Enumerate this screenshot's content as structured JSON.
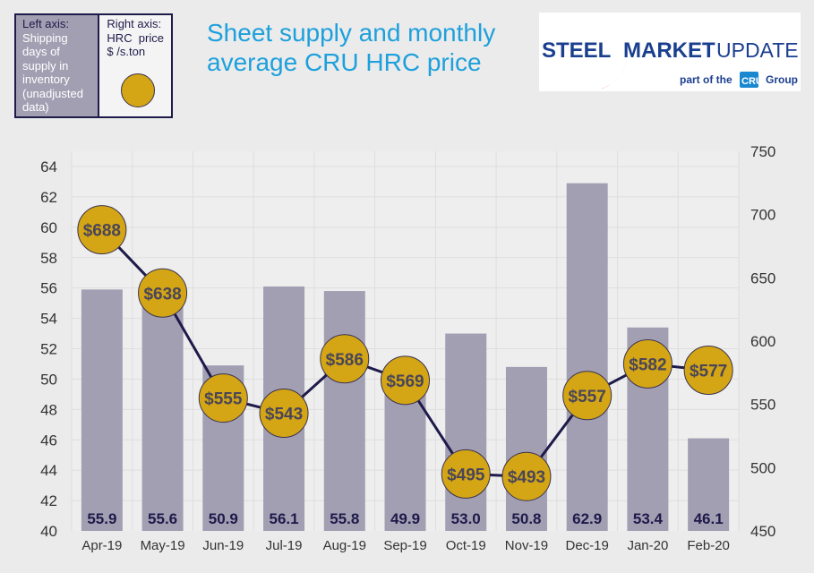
{
  "title_line1": "Sheet supply and monthly",
  "title_line2": "average CRU HRC price",
  "legend": {
    "left_heading": "Left axis:",
    "left_text": [
      "Shipping",
      "days of",
      "supply in",
      "inventory",
      "(unadjusted",
      "data)"
    ],
    "right_heading": "Right axis:",
    "right_text": [
      "HRC  price",
      "$ /s.ton"
    ]
  },
  "logo": {
    "text1": "STEEL",
    "text2": "MARKET",
    "text3": "UPDATE",
    "sub1": "part of the",
    "cru": "CRU",
    "sub2": "Group"
  },
  "chart_data": {
    "type": "bar+line",
    "categories": [
      "Apr-19",
      "May-19",
      "Jun-19",
      "Jul-19",
      "Aug-19",
      "Sep-19",
      "Oct-19",
      "Nov-19",
      "Dec-19",
      "Jan-20",
      "Feb-20"
    ],
    "series": [
      {
        "name": "Shipping days of supply in inventory",
        "axis": "left",
        "type": "bar",
        "values": [
          55.9,
          55.6,
          50.9,
          56.1,
          55.8,
          49.9,
          53.0,
          50.8,
          62.9,
          53.4,
          46.1
        ],
        "labels": [
          "55.9",
          "55.6",
          "50.9",
          "56.1",
          "55.8",
          "49.9",
          "53.0",
          "50.8",
          "62.9",
          "53.4",
          "46.1"
        ]
      },
      {
        "name": "HRC price $/s.ton",
        "axis": "right",
        "type": "line",
        "values": [
          688,
          638,
          555,
          543,
          586,
          569,
          495,
          493,
          557,
          582,
          577
        ],
        "labels": [
          "$688",
          "$638",
          "$555",
          "$543",
          "$586",
          "$569",
          "$495",
          "$493",
          "$557",
          "$582",
          "$577"
        ]
      }
    ],
    "left_axis": {
      "range": [
        40,
        64
      ],
      "ticks": [
        "40",
        "42",
        "44",
        "46",
        "48",
        "50",
        "52",
        "54",
        "56",
        "58",
        "60",
        "62",
        "64"
      ]
    },
    "right_axis": {
      "range": [
        450,
        750
      ],
      "ticks": [
        "450",
        "500",
        "550",
        "600",
        "650",
        "700",
        "750"
      ]
    },
    "colors": {
      "bar": "#a39fb3",
      "line": "#1e1a4a",
      "marker": "#d4a514",
      "marker_text": "#4a4658",
      "bar_label": "#1e1a4a"
    }
  }
}
